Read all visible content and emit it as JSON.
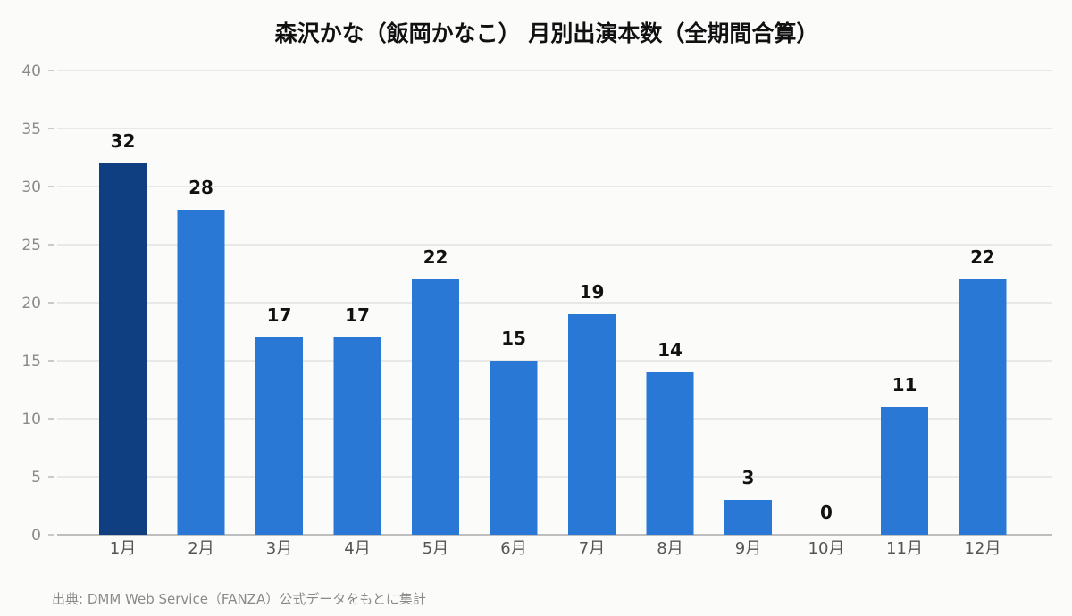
{
  "chart_data": {
    "type": "bar",
    "title": "森沢かな（飯岡かなこ） 月別出演本数（全期間合算）",
    "xlabel": "",
    "ylabel": "",
    "ylim": [
      0,
      40
    ],
    "yticks": [
      0,
      5,
      10,
      15,
      20,
      25,
      30,
      35,
      40
    ],
    "grid": true,
    "categories": [
      "1月",
      "2月",
      "3月",
      "4月",
      "5月",
      "6月",
      "7月",
      "8月",
      "9月",
      "10月",
      "11月",
      "12月"
    ],
    "values": [
      32,
      28,
      17,
      17,
      22,
      15,
      19,
      14,
      3,
      0,
      11,
      22
    ],
    "highlight_index": 0,
    "colors": {
      "bar": "#2a78d6",
      "highlight": "#0f3f80",
      "grid": "#dcdcdc",
      "axis": "#aaaaaa"
    },
    "source": "出典: DMM Web Service（FANZA）公式データをもとに集計"
  }
}
